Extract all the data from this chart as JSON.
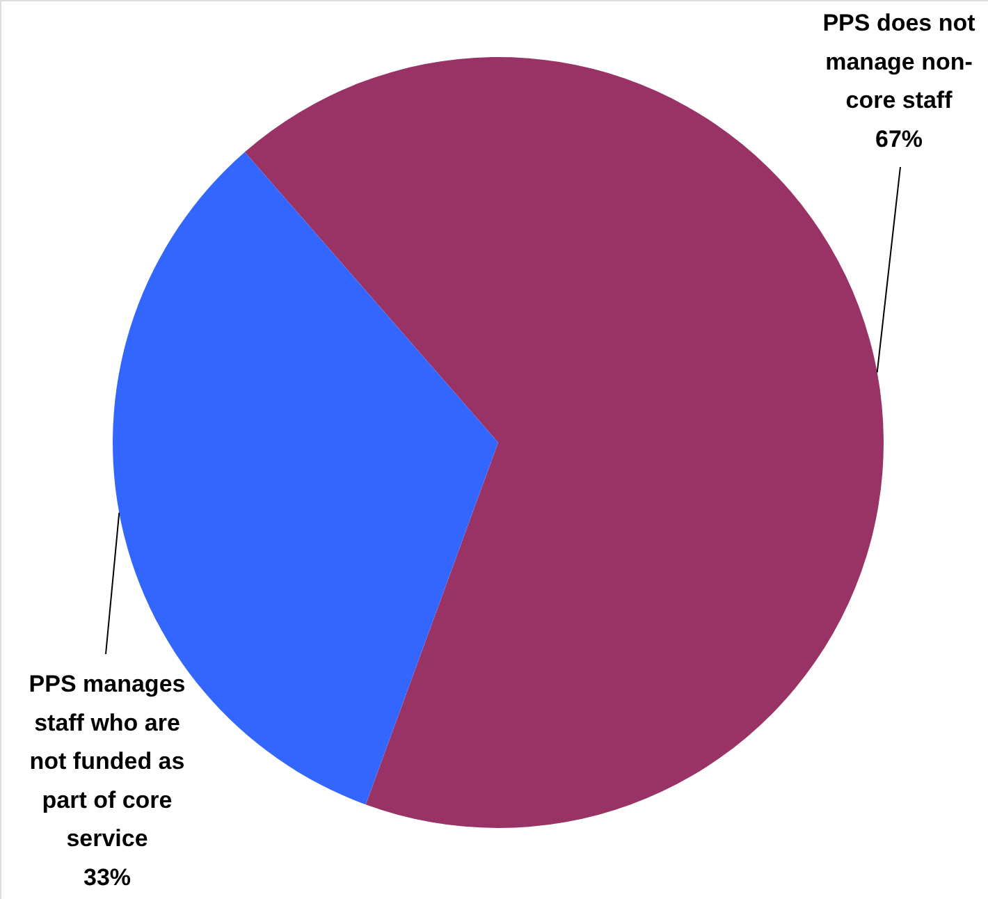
{
  "chart_data": {
    "type": "pie",
    "categories": [
      "PPS does not manage non-core staff",
      "PPS manages staff who are not funded as part of core service"
    ],
    "values": [
      67,
      33
    ],
    "colors": [
      "#993366",
      "#3366ff"
    ],
    "value_labels": [
      "67%",
      "33%"
    ]
  }
}
